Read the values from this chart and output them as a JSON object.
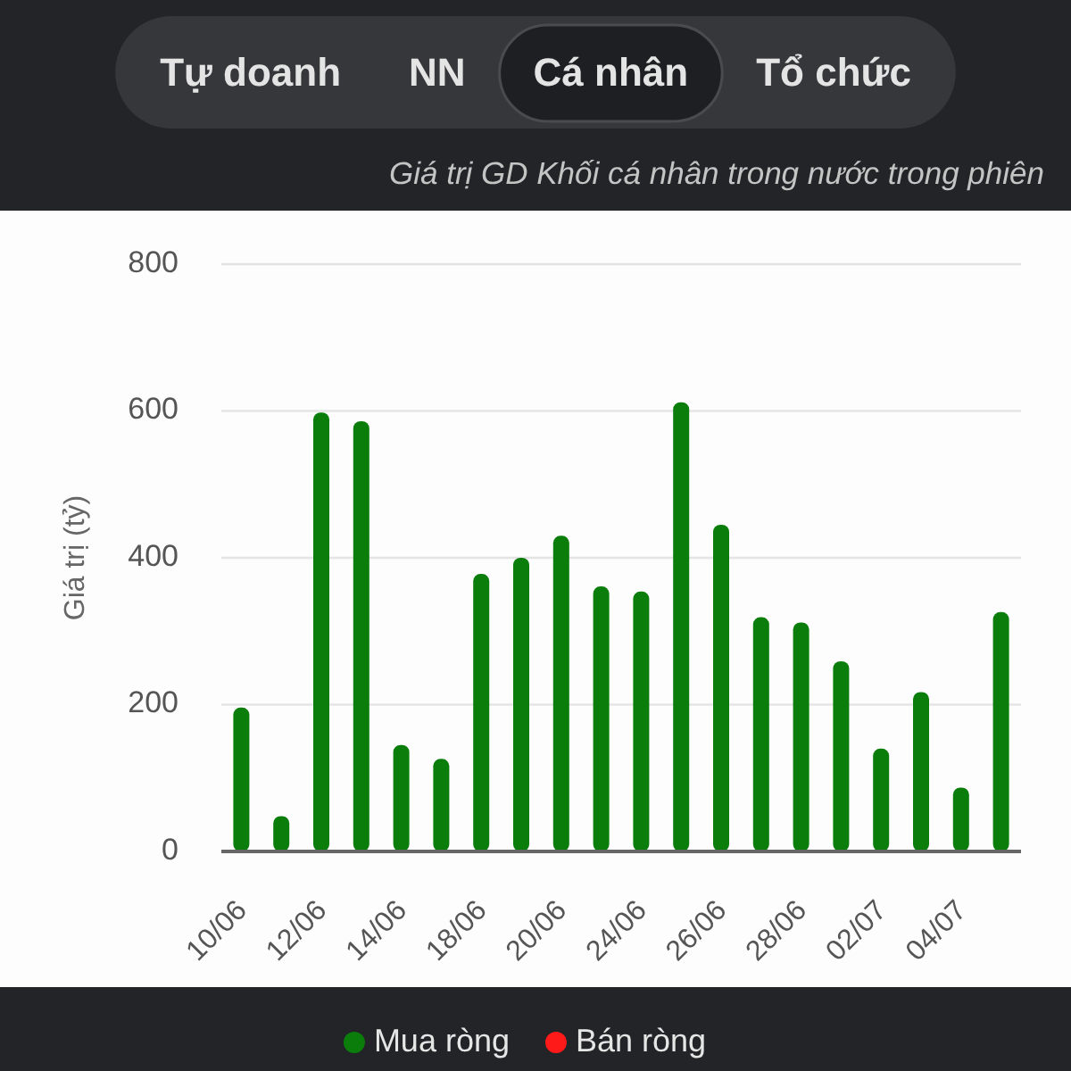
{
  "chart_data": {
    "type": "bar",
    "title": "Giá trị GD Khối cá nhân trong nước trong phiên",
    "ylabel": "Giá trị (tỷ)",
    "annotations": [
      "Tự doanh",
      "NN",
      "Cá nhân",
      "Tổ chức"
    ],
    "categories": [
      "10/06",
      null,
      "12/06",
      null,
      "14/06",
      null,
      "18/06",
      null,
      "20/06",
      null,
      "24/06",
      null,
      "26/06",
      null,
      "28/06",
      null,
      "02/07",
      null,
      "04/07",
      null
    ],
    "series": [
      {
        "name": "Mua ròng",
        "color": "#0b7d0b",
        "values": [
          196,
          48,
          598,
          586,
          145,
          126,
          378,
          400,
          430,
          361,
          354,
          612,
          445,
          319,
          312,
          259,
          140,
          217,
          87,
          326
        ]
      },
      {
        "name": "Bán ròng",
        "color": "#ff1a1a",
        "values": [
          null,
          null,
          null,
          null,
          null,
          null,
          null,
          null,
          null,
          null,
          null,
          null,
          null,
          null,
          null,
          null,
          null,
          null,
          null,
          null
        ]
      }
    ],
    "stacked": true,
    "ylim": [
      0,
      800
    ],
    "yticks": [
      0,
      200,
      400,
      600,
      800
    ],
    "grid": "y",
    "legend": "bottom"
  }
}
